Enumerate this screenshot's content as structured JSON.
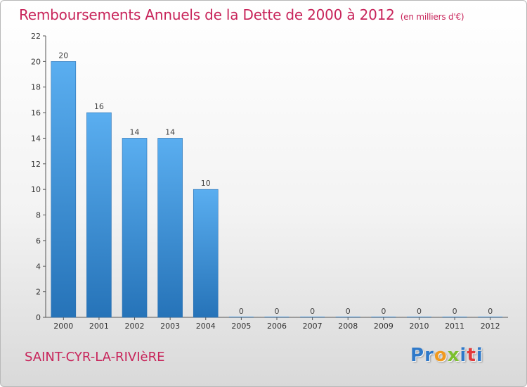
{
  "header": {
    "title": "Remboursements Annuels de la Dette de 2000 à 2012",
    "subtitle": "(en milliers d'€)"
  },
  "footer": {
    "commune": "SAINT-CYR-LA-RIVIèRE",
    "logo_letters": [
      "P",
      "r",
      "o",
      "x",
      "i",
      "t",
      "i"
    ]
  },
  "chart_data": {
    "type": "bar",
    "title": "Remboursements Annuels de la Dette de 2000 à 2012",
    "subtitle": "(en milliers d'€)",
    "categories": [
      "2000",
      "2001",
      "2002",
      "2003",
      "2004",
      "2005",
      "2006",
      "2007",
      "2008",
      "2009",
      "2010",
      "2011",
      "2012"
    ],
    "values": [
      20,
      16,
      14,
      14,
      10,
      0,
      0,
      0,
      0,
      0,
      0,
      0,
      0
    ],
    "data_labels": [
      "20",
      "16",
      "14",
      "14",
      "10",
      "0",
      "0",
      "0",
      "0",
      "0",
      "0",
      "0",
      "0"
    ],
    "ylim": [
      0,
      22
    ],
    "yticks": [
      0,
      2,
      4,
      6,
      8,
      10,
      12,
      14,
      16,
      18,
      20,
      22
    ],
    "xlabel": "",
    "ylabel": "",
    "grid": false,
    "bar_color": "#3c8fd8",
    "bar_color_light": "#5aaef0",
    "bar_color_dark": "#2673b8"
  }
}
